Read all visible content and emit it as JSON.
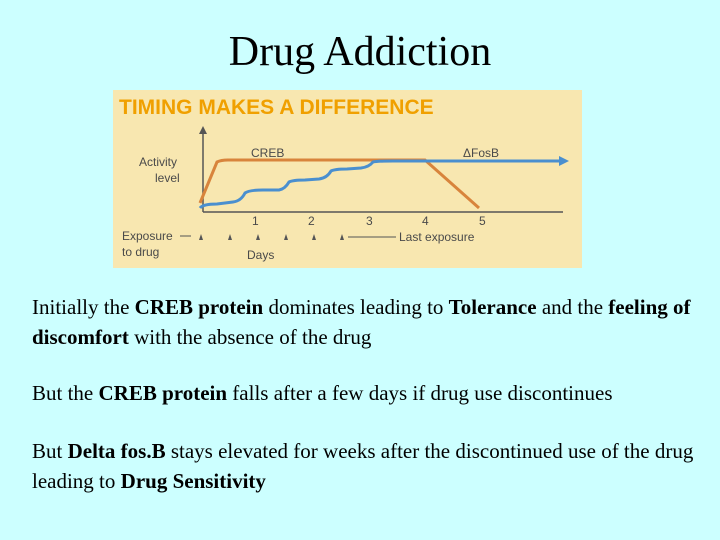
{
  "slide": {
    "title": "Drug Addiction"
  },
  "figure": {
    "banner": "TIMING MAKES A DIFFERENCE",
    "y_label_line1": "Activity",
    "y_label_line2": "level",
    "series_creb": "CREB",
    "series_fosb": "ΔFosB",
    "exposure_line1": "Exposure",
    "exposure_line2": "to drug",
    "x_label": "Days",
    "last_exposure": "Last exposure",
    "ticks": [
      "1",
      "2",
      "3",
      "4",
      "5"
    ],
    "colors": {
      "banner": "#f0a000",
      "creb": "#d8843c",
      "fosb": "#4a8fcf",
      "background": "#f8e7b0"
    }
  },
  "chart_data": {
    "type": "line",
    "x": [
      0,
      1,
      2,
      3,
      4,
      5
    ],
    "xlabel": "Days",
    "ylabel": "Activity level",
    "series": [
      {
        "name": "CREB",
        "values": [
          0.9,
          0.9,
          0.9,
          0.9,
          0.9,
          0.0
        ]
      },
      {
        "name": "ΔFosB",
        "values": [
          0.1,
          0.3,
          0.5,
          0.7,
          0.9,
          0.95
        ]
      }
    ]
  },
  "text": {
    "p1": [
      {
        "t": "Initially the ",
        "b": false
      },
      {
        "t": "CREB protein",
        "b": true
      },
      {
        "t": " dominates leading to ",
        "b": false
      },
      {
        "t": "Tolerance",
        "b": true
      },
      {
        "t": " and the ",
        "b": false
      },
      {
        "t": "feeling of discomfort",
        "b": true
      },
      {
        "t": " with the absence of the drug",
        "b": false
      }
    ],
    "p2": [
      {
        "t": "But the ",
        "b": false
      },
      {
        "t": "CREB protein",
        "b": true
      },
      {
        "t": " falls after a few days if drug use discontinues",
        "b": false
      }
    ],
    "p3": [
      {
        "t": "But ",
        "b": false
      },
      {
        "t": "Delta fos.B",
        "b": true
      },
      {
        "t": " stays elevated for weeks after the discontinued use of the drug leading to ",
        "b": false
      },
      {
        "t": "Drug Sensitivity",
        "b": true
      }
    ]
  }
}
